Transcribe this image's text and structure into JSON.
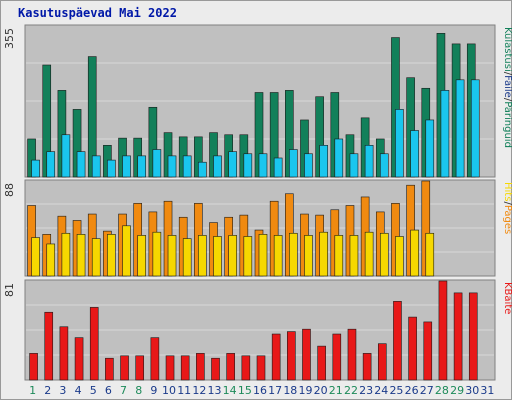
{
  "title": "Kasutuspäevad Mai 2022",
  "colors": {
    "panel_bg": "#c0c0c0",
    "grid": "#d8d8d8",
    "visits": "#12805a",
    "pages": "#f08a10",
    "files": "#1ac6ee",
    "hits": "#f6d800",
    "kbytes": "#e81818",
    "title": "#0018a8",
    "weekend_label": "#1d8a5a",
    "weekday_label": "#1a3a8a"
  },
  "chart_data": [
    {
      "type": "bar",
      "panel": "top",
      "axis_max_label": "355",
      "right_labels": [
        "Külastusi",
        "/",
        "Faile",
        "/",
        "Päringuid"
      ],
      "categories": [
        "1",
        "2",
        "3",
        "4",
        "5",
        "6",
        "7",
        "8",
        "9",
        "10",
        "11",
        "12",
        "13",
        "14",
        "15",
        "16",
        "17",
        "18",
        "19",
        "20",
        "21",
        "22",
        "23",
        "24",
        "25",
        "26",
        "27",
        "28",
        "29",
        "30",
        "31"
      ],
      "weekend_days": [
        1,
        7,
        8,
        14,
        15,
        21,
        22,
        28,
        29
      ],
      "ylim": [
        0,
        355
      ],
      "series": [
        {
          "name": "Külastusi",
          "role": "back",
          "values": [
            90,
            265,
            205,
            160,
            285,
            75,
            92,
            92,
            165,
            105,
            95,
            95,
            105,
            100,
            100,
            200,
            200,
            205,
            135,
            190,
            200,
            100,
            140,
            90,
            330,
            235,
            210,
            340,
            315,
            315,
            0
          ]
        },
        {
          "name": "Faile",
          "role": "front",
          "values": [
            40,
            60,
            100,
            60,
            50,
            40,
            50,
            50,
            65,
            50,
            50,
            35,
            50,
            60,
            55,
            55,
            45,
            65,
            55,
            75,
            90,
            55,
            75,
            55,
            160,
            110,
            135,
            205,
            230,
            230,
            0
          ]
        }
      ]
    },
    {
      "type": "bar",
      "panel": "middle",
      "axis_max_label": "88",
      "right_labels": [
        "Hits",
        "/",
        "Pages"
      ],
      "categories": [
        "1",
        "2",
        "3",
        "4",
        "5",
        "6",
        "7",
        "8",
        "9",
        "10",
        "11",
        "12",
        "13",
        "14",
        "15",
        "16",
        "17",
        "18",
        "19",
        "20",
        "21",
        "22",
        "23",
        "24",
        "25",
        "26",
        "27",
        "28",
        "29",
        "30",
        "31"
      ],
      "ylim": [
        0,
        88
      ],
      "series": [
        {
          "name": "Pages",
          "role": "back",
          "values": [
            66,
            39,
            56,
            52,
            58,
            42,
            58,
            68,
            60,
            70,
            55,
            68,
            50,
            55,
            57,
            43,
            70,
            77,
            58,
            57,
            62,
            66,
            74,
            60,
            68,
            85,
            90,
            0,
            0,
            0,
            0
          ]
        },
        {
          "name": "Hits",
          "role": "front",
          "values": [
            36,
            30,
            40,
            39,
            35,
            39,
            47,
            38,
            41,
            38,
            35,
            38,
            37,
            38,
            37,
            39,
            38,
            40,
            38,
            41,
            38,
            38,
            41,
            40,
            37,
            43,
            40,
            0,
            0,
            0,
            0
          ]
        }
      ]
    },
    {
      "type": "bar",
      "panel": "bottom",
      "axis_max_label": "81",
      "right_labels": [
        "KBaite"
      ],
      "categories": [
        "1",
        "2",
        "3",
        "4",
        "5",
        "6",
        "7",
        "8",
        "9",
        "10",
        "11",
        "12",
        "13",
        "14",
        "15",
        "16",
        "17",
        "18",
        "19",
        "20",
        "21",
        "22",
        "23",
        "24",
        "25",
        "26",
        "27",
        "28",
        "29",
        "30",
        "31"
      ],
      "ylim": [
        0,
        81
      ],
      "series": [
        {
          "name": "KBaite",
          "role": "single",
          "values": [
            22,
            56,
            44,
            35,
            60,
            18,
            20,
            20,
            35,
            20,
            20,
            22,
            18,
            22,
            20,
            20,
            38,
            40,
            42,
            28,
            38,
            42,
            22,
            30,
            65,
            52,
            48,
            82,
            72,
            72,
            0
          ]
        }
      ]
    }
  ]
}
